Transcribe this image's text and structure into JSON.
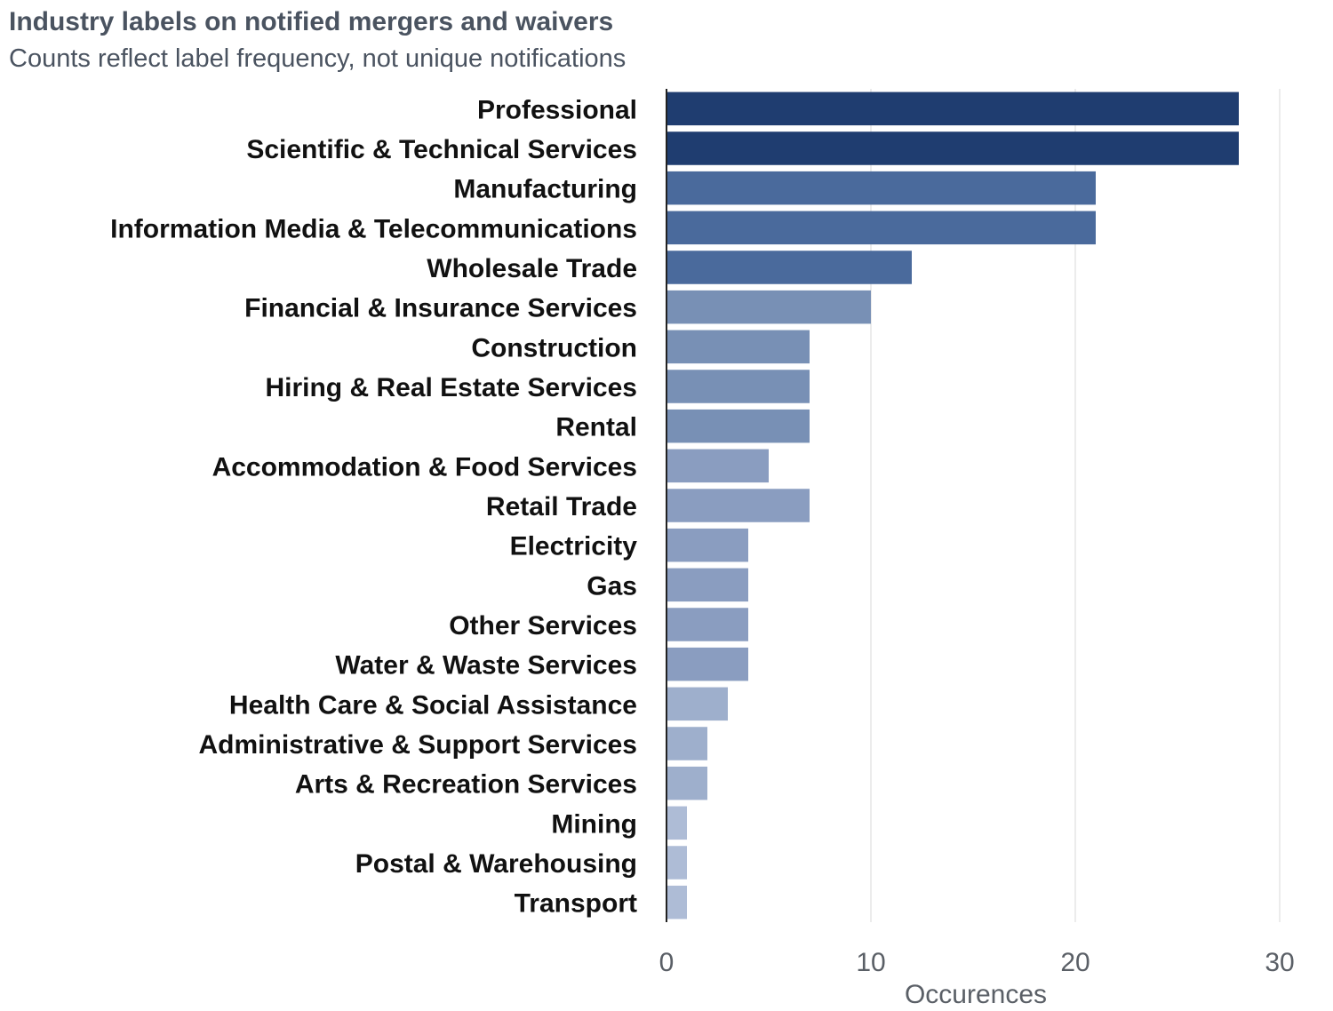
{
  "chart_data": {
    "type": "bar",
    "orientation": "horizontal",
    "title": "Industry labels on notified mergers and waivers",
    "subtitle": "Counts reflect label frequency, not unique notifications",
    "xlabel": "Occurences",
    "ylabel": "",
    "xlim": [
      0,
      30
    ],
    "xticks": [
      0,
      10,
      20,
      30
    ],
    "grid": "vertical",
    "legend": "none",
    "categories": [
      "Professional",
      "Scientific & Technical Services",
      "Manufacturing",
      "Information Media & Telecommunications",
      "Wholesale Trade",
      "Financial & Insurance Services",
      "Construction",
      "Hiring & Real Estate Services",
      "Rental",
      "Accommodation & Food Services",
      "Retail Trade",
      "Electricity",
      "Gas",
      "Other Services",
      "Water & Waste Services",
      "Health Care & Social Assistance",
      "Administrative & Support Services",
      "Arts & Recreation Services",
      "Mining",
      "Postal & Warehousing",
      "Transport"
    ],
    "values": [
      28,
      28,
      21,
      21,
      12,
      10,
      7,
      7,
      7,
      5,
      7,
      4,
      4,
      4,
      4,
      3,
      2,
      2,
      1,
      1,
      1
    ],
    "colors": [
      "#1f3d70",
      "#1f3d70",
      "#4a6a9c",
      "#4a6a9c",
      "#4a6a9c",
      "#7890b5",
      "#7890b5",
      "#7890b5",
      "#7890b5",
      "#8a9dc0",
      "#8a9dc0",
      "#8a9dc0",
      "#8a9dc0",
      "#8a9dc0",
      "#8a9dc0",
      "#9eafcc",
      "#9eafcc",
      "#9eafcc",
      "#aebcd6",
      "#aebcd6",
      "#aebcd6"
    ]
  }
}
